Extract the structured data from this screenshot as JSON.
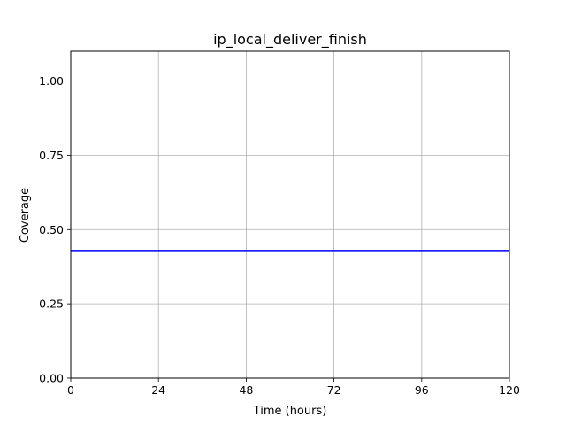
{
  "chart_data": {
    "type": "line",
    "title": "ip_local_deliver_finish",
    "xlabel": "Time (hours)",
    "ylabel": "Coverage",
    "xlim": [
      0,
      120
    ],
    "ylim": [
      0,
      1.1
    ],
    "xticks": [
      0,
      24,
      48,
      72,
      96,
      120
    ],
    "yticks": [
      0.0,
      0.25,
      0.5,
      0.75,
      1.0
    ],
    "xtick_labels": [
      "0",
      "24",
      "48",
      "72",
      "96",
      "120"
    ],
    "ytick_labels": [
      "0.00",
      "0.25",
      "0.50",
      "0.75",
      "1.00"
    ],
    "grid": true,
    "series": [
      {
        "name": "coverage",
        "color": "#0000ff",
        "x": [
          0,
          120
        ],
        "y": [
          0.428,
          0.428
        ]
      }
    ]
  }
}
